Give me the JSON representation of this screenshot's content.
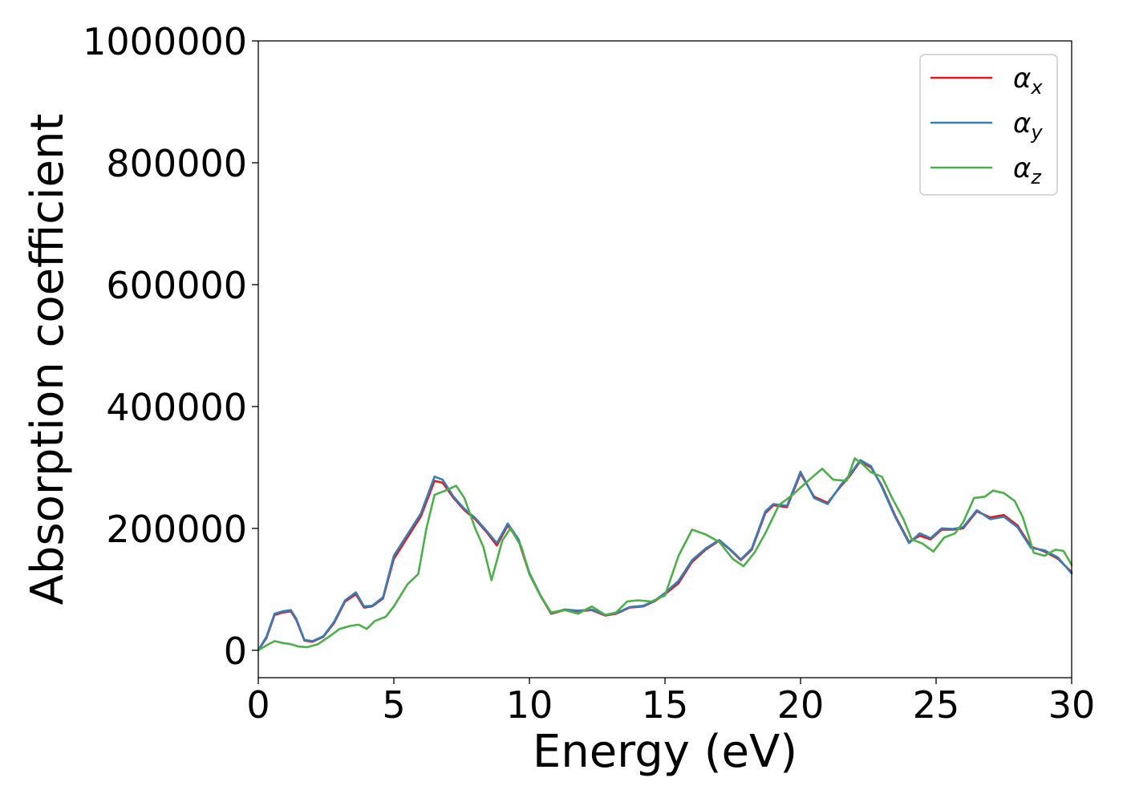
{
  "chart_data": {
    "type": "line",
    "xlabel": "Energy (eV)",
    "ylabel": "Absorption coefficient",
    "xlim": [
      0,
      30
    ],
    "ylim": [
      -45000,
      1000000
    ],
    "xticks": [
      0,
      5,
      10,
      15,
      20,
      25,
      30
    ],
    "yticks": [
      0,
      200000,
      400000,
      600000,
      800000,
      1000000
    ],
    "grid": false,
    "legend": "top-right",
    "series": [
      {
        "name": "α",
        "subscript": "x",
        "color": "#e41a1c",
        "x": [
          0,
          0.3,
          0.6,
          0.9,
          1.2,
          1.4,
          1.7,
          2.0,
          2.4,
          2.8,
          3.2,
          3.6,
          3.9,
          4.2,
          4.6,
          5.0,
          5.5,
          6.0,
          6.5,
          6.8,
          7.2,
          7.6,
          8.0,
          8.4,
          8.8,
          9.2,
          9.6,
          10.0,
          10.4,
          10.8,
          11.3,
          11.8,
          12.3,
          12.8,
          13.2,
          13.7,
          14.2,
          14.6,
          15.0,
          15.5,
          16.0,
          16.5,
          17.0,
          17.4,
          17.8,
          18.2,
          18.7,
          19.0,
          19.5,
          20.0,
          20.5,
          21.0,
          21.5,
          21.8,
          22.2,
          22.6,
          23.0,
          23.5,
          24.0,
          24.4,
          24.8,
          25.2,
          25.6,
          26.0,
          26.5,
          27.0,
          27.5,
          28.0,
          28.5,
          29.0,
          29.5,
          30.0
        ],
        "values": [
          0,
          20000,
          58000,
          62000,
          64000,
          50000,
          16000,
          14000,
          22000,
          45000,
          80000,
          92000,
          70000,
          72000,
          85000,
          150000,
          185000,
          220000,
          278000,
          275000,
          250000,
          230000,
          215000,
          195000,
          172000,
          205000,
          180000,
          125000,
          90000,
          60000,
          66000,
          64000,
          66000,
          57000,
          60000,
          70000,
          72000,
          80000,
          92000,
          110000,
          145000,
          165000,
          180000,
          165000,
          148000,
          165000,
          225000,
          238000,
          235000,
          290000,
          252000,
          242000,
          270000,
          285000,
          310000,
          300000,
          270000,
          220000,
          178000,
          188000,
          182000,
          198000,
          198000,
          200000,
          228000,
          218000,
          222000,
          205000,
          170000,
          162000,
          150000,
          128000
        ]
      },
      {
        "name": "α",
        "subscript": "y",
        "color": "#377eb8",
        "x": [
          0,
          0.3,
          0.6,
          0.9,
          1.2,
          1.4,
          1.7,
          2.0,
          2.4,
          2.8,
          3.2,
          3.6,
          3.9,
          4.2,
          4.6,
          5.0,
          5.5,
          6.0,
          6.5,
          6.8,
          7.2,
          7.6,
          8.0,
          8.4,
          8.8,
          9.2,
          9.6,
          10.0,
          10.4,
          10.8,
          11.3,
          11.8,
          12.3,
          12.8,
          13.2,
          13.7,
          14.2,
          14.6,
          15.0,
          15.5,
          16.0,
          16.5,
          17.0,
          17.4,
          17.8,
          18.2,
          18.7,
          19.0,
          19.5,
          20.0,
          20.5,
          21.0,
          21.5,
          21.8,
          22.2,
          22.6,
          23.0,
          23.5,
          24.0,
          24.4,
          24.8,
          25.2,
          25.6,
          26.0,
          26.5,
          27.0,
          27.5,
          28.0,
          28.5,
          29.0,
          29.5,
          30.0
        ],
        "values": [
          0,
          22000,
          60000,
          64000,
          66000,
          52000,
          17000,
          15000,
          23000,
          47000,
          82000,
          95000,
          72000,
          73000,
          87000,
          155000,
          190000,
          225000,
          285000,
          280000,
          252000,
          232000,
          217000,
          197000,
          176000,
          208000,
          182000,
          127000,
          91000,
          61000,
          67000,
          65000,
          67000,
          58000,
          61000,
          71000,
          73000,
          81000,
          94000,
          114000,
          148000,
          167000,
          181000,
          166000,
          149000,
          167000,
          228000,
          240000,
          237000,
          293000,
          250000,
          240000,
          272000,
          287000,
          312000,
          302000,
          268000,
          218000,
          176000,
          192000,
          184000,
          200000,
          199000,
          202000,
          230000,
          215000,
          219000,
          202000,
          168000,
          164000,
          152000,
          126000
        ]
      },
      {
        "name": "α",
        "subscript": "z",
        "color": "#4daf4a",
        "x": [
          0,
          0.3,
          0.6,
          0.9,
          1.2,
          1.5,
          1.8,
          2.2,
          2.6,
          3.0,
          3.4,
          3.7,
          4.0,
          4.3,
          4.7,
          5.0,
          5.5,
          5.9,
          6.2,
          6.5,
          6.9,
          7.3,
          7.6,
          8.0,
          8.3,
          8.6,
          9.0,
          9.3,
          9.7,
          10.0,
          10.4,
          10.8,
          11.3,
          11.8,
          12.3,
          12.8,
          13.2,
          13.6,
          14.0,
          14.5,
          15.0,
          15.5,
          16.0,
          16.5,
          17.0,
          17.5,
          17.9,
          18.3,
          18.7,
          19.2,
          19.7,
          20.2,
          20.8,
          21.2,
          21.7,
          22.0,
          22.3,
          22.6,
          23.0,
          23.4,
          23.8,
          24.1,
          24.5,
          24.9,
          25.3,
          25.7,
          26.0,
          26.4,
          26.8,
          27.1,
          27.5,
          27.9,
          28.2,
          28.6,
          29.0,
          29.4,
          29.7,
          30.0
        ],
        "values": [
          0,
          8000,
          15000,
          12000,
          10000,
          6000,
          5000,
          10000,
          22000,
          35000,
          40000,
          42000,
          35000,
          48000,
          55000,
          72000,
          108000,
          125000,
          200000,
          255000,
          262000,
          270000,
          250000,
          200000,
          170000,
          115000,
          180000,
          200000,
          170000,
          125000,
          90000,
          62000,
          66000,
          60000,
          72000,
          58000,
          62000,
          80000,
          82000,
          80000,
          90000,
          155000,
          198000,
          190000,
          178000,
          150000,
          138000,
          160000,
          192000,
          238000,
          255000,
          275000,
          298000,
          280000,
          278000,
          315000,
          305000,
          292000,
          285000,
          248000,
          215000,
          182000,
          175000,
          162000,
          185000,
          192000,
          210000,
          250000,
          252000,
          262000,
          258000,
          245000,
          218000,
          160000,
          155000,
          165000,
          163000,
          140000
        ]
      }
    ]
  }
}
